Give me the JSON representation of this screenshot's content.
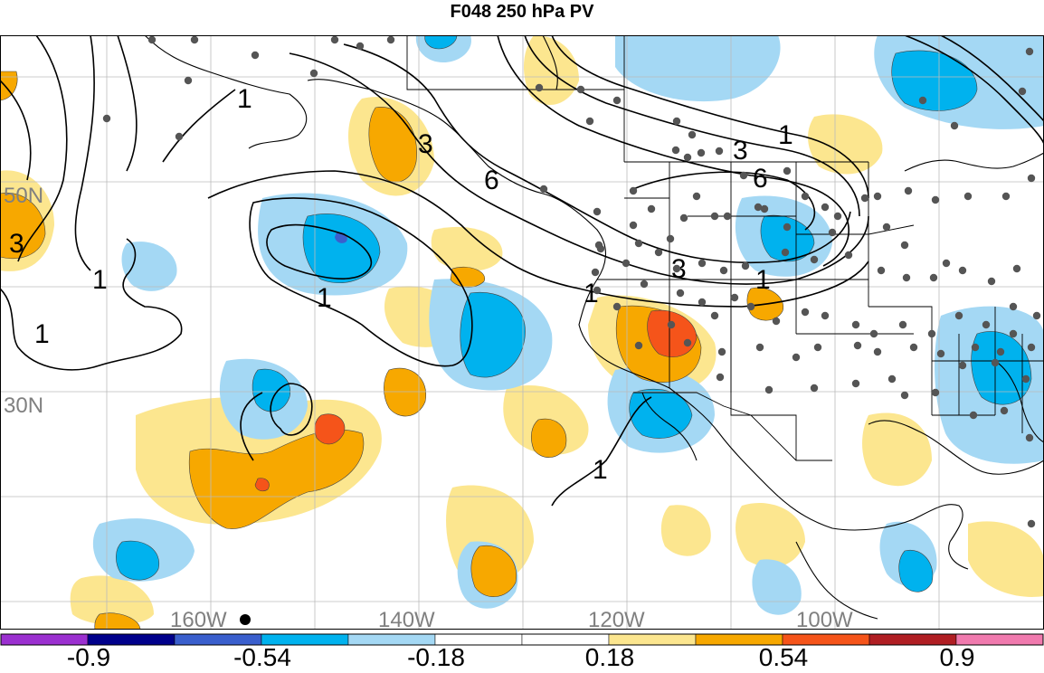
{
  "title": "F048 250 hPa PV",
  "lat_labels": [
    "50N",
    "30N"
  ],
  "lon_labels": [
    "160W",
    "140W",
    "120W",
    "100W"
  ],
  "contour_labels": [
    "1",
    "3",
    "6"
  ],
  "colorbar": {
    "tick_labels": [
      "-0.9",
      "-0.54",
      "-0.18",
      "0.18",
      "0.54",
      "0.9"
    ],
    "colors": [
      "#9b30d0",
      "#00008b",
      "#3a5fcd",
      "#00b2ee",
      "#a4d8f4",
      "#ffffff",
      "#ffffff",
      "#fce68f",
      "#f7a800",
      "#f5541a",
      "#b01e23",
      "#f07aae"
    ]
  },
  "palette": {
    "neg_weak": "#a4d8f4",
    "neg_mid": "#00b2ee",
    "neg_strong": "#3a5fcd",
    "pos_weak": "#fce68f",
    "pos_mid": "#f7a800",
    "pos_strong": "#f5541a",
    "station": "#555555"
  }
}
